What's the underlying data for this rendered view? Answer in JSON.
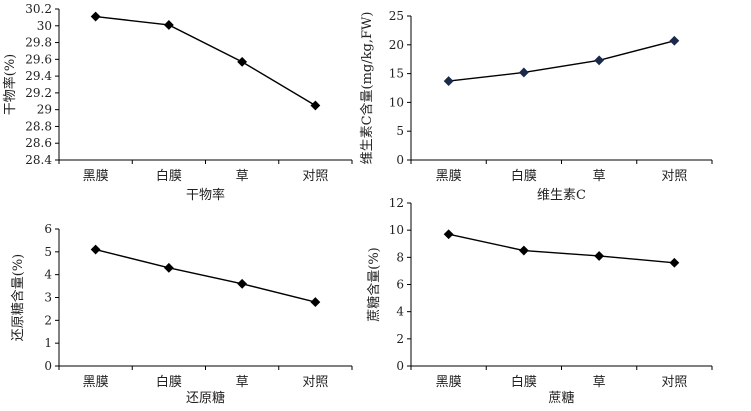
{
  "chart_data": [
    {
      "type": "line",
      "categories": [
        "黑膜",
        "白膜",
        "草",
        "对照"
      ],
      "values": [
        30.11,
        30.01,
        29.57,
        29.05
      ],
      "xlabel": "干物率",
      "ylabel": "干物率(%)",
      "ylim": [
        28.4,
        30.2
      ],
      "yticks": [
        "28.4",
        "28.6",
        "28.8",
        "29",
        "29.2",
        "29.4",
        "29.6",
        "29.8",
        "30",
        "30.2"
      ],
      "grid": false,
      "marker": "diamond",
      "color": "#000000"
    },
    {
      "type": "line",
      "categories": [
        "黑膜",
        "白膜",
        "草",
        "对照"
      ],
      "values": [
        13.7,
        15.2,
        17.3,
        20.7
      ],
      "xlabel": "维生素C",
      "ylabel": "维生素C含量(mg/kg,FW)",
      "ylim": [
        0,
        25
      ],
      "yticks": [
        "0",
        "5",
        "10",
        "15",
        "20",
        "25"
      ],
      "grid": false,
      "marker": "diamond",
      "color": "#1a2a4a"
    },
    {
      "type": "line",
      "categories": [
        "黑膜",
        "白膜",
        "草",
        "对照"
      ],
      "values": [
        5.1,
        4.3,
        3.6,
        2.8
      ],
      "xlabel": "还原糖",
      "ylabel": "还原糖含量(%)",
      "ylim": [
        0,
        6
      ],
      "yticks": [
        "0",
        "1",
        "2",
        "3",
        "4",
        "5",
        "6"
      ],
      "grid": false,
      "marker": "diamond",
      "color": "#000000"
    },
    {
      "type": "line",
      "categories": [
        "黑膜",
        "白膜",
        "草",
        "对照"
      ],
      "values": [
        9.7,
        8.5,
        8.1,
        7.6
      ],
      "xlabel": "蔗糖",
      "ylabel": "蔗糖含量(%)",
      "ylim": [
        0,
        12
      ],
      "yticks": [
        "0",
        "2",
        "4",
        "6",
        "8",
        "10",
        "12"
      ],
      "grid": false,
      "marker": "diamond",
      "color": "#000000"
    }
  ]
}
